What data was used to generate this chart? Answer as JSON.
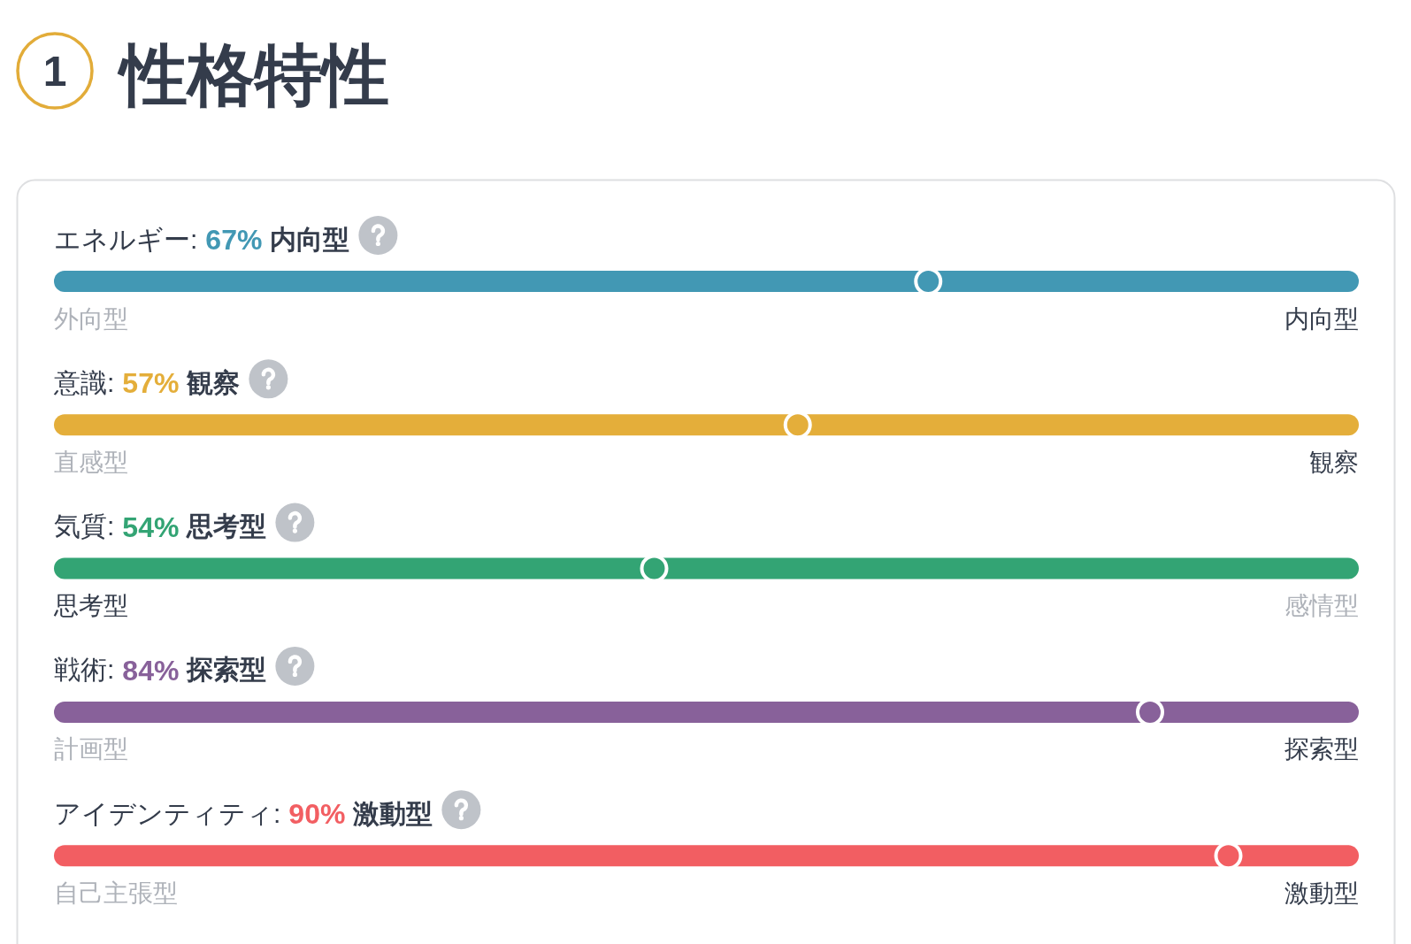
{
  "chart_data": [
    {
      "type": "other",
      "title": "性格特性",
      "annotations": [
        "1"
      ]
    },
    {
      "type": "other",
      "title": "エネルギー:",
      "categories": [
        "外向型",
        "内向型"
      ],
      "values": [
        null,
        67
      ],
      "value_labels": [
        null,
        "67%"
      ],
      "color": "#4298b4"
    },
    {
      "type": "other",
      "title": "意識:",
      "categories": [
        "直感型",
        "観察"
      ],
      "values": [
        null,
        57
      ],
      "value_labels": [
        null,
        "57%"
      ],
      "color": "#e4ae3a"
    },
    {
      "type": "other",
      "title": "気質:",
      "categories": [
        "思考型",
        "感情型"
      ],
      "values": [
        54,
        null
      ],
      "value_labels": [
        "54%",
        null
      ],
      "color": "#33a474"
    },
    {
      "type": "other",
      "title": "戦術:",
      "categories": [
        "計画型",
        "探索型"
      ],
      "values": [
        null,
        84
      ],
      "value_labels": [
        null,
        "84%"
      ],
      "color": "#88619a"
    },
    {
      "type": "other",
      "title": "アイデンティティ:",
      "categories": [
        "自己主張型",
        "激動型"
      ],
      "values": [
        null,
        90
      ],
      "value_labels": [
        null,
        "90%"
      ],
      "color": "#f25e62"
    }
  ]
}
